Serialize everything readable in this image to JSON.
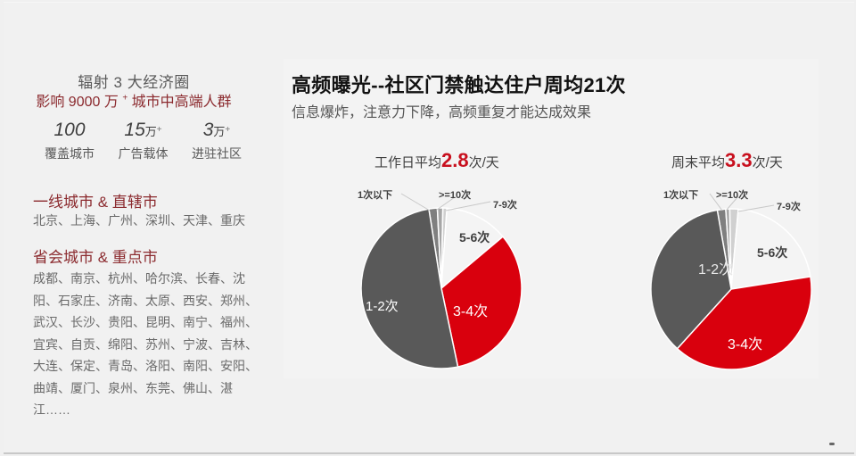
{
  "left": {
    "headline": "辐射 3 大经济圈",
    "subline_prefix": "影响 9000 万",
    "subline_sup": "+",
    "subline_suffix": "城市中高端人群",
    "stats": [
      {
        "value": "100",
        "unit": "",
        "sup": "",
        "label": "覆盖城市"
      },
      {
        "value": "15",
        "unit": "万",
        "sup": "+",
        "label": "广告载体"
      },
      {
        "value": "3",
        "unit": "万",
        "sup": "+",
        "label": "进驻社区"
      }
    ],
    "sections": [
      {
        "title": "一线城市 & 直辖市",
        "body": "北京、上海、广州、深圳、天津、重庆"
      },
      {
        "title": "省会城市 & 重点市",
        "body": "成都、南京、杭州、哈尔滨、长春、沈阳、石家庄、济南、太原、西安、郑州、武汉、长沙、贵阳、昆明、南宁、福州、宜宾、自贡、绵阳、苏州、宁波、吉林、大连、保定、青岛、洛阳、南阳、安阳、曲靖、厦门、泉州、东莞、佛山、湛江……"
      }
    ]
  },
  "right": {
    "title": "高频曝光--社区门禁触达住户周均21次",
    "subtitle": "信息爆炸，注意力下降，高频重复才能达成效果"
  },
  "colors": {
    "accent_red": "#d9000d",
    "brand_maroon": "#8b2a2e",
    "dark_grey": "#595959",
    "mid_grey": "#7f7f7f",
    "light_grey": "#a6a6a6",
    "lighter_grey": "#d0d0d0",
    "white_slice": "#f4f4f4"
  },
  "chart_data": [
    {
      "type": "pie",
      "title": "工作日平均2.8次/天",
      "title_prefix": "工作日平均",
      "title_value": "2.8",
      "title_suffix": "次/天",
      "categories": [
        "1次以下",
        ">=10次",
        "7-9次",
        "5-6次",
        "3-4次",
        "1-2次"
      ],
      "values": [
        1.7,
        1.1,
        0.8,
        12.8,
        32.8,
        50.8
      ],
      "colors": [
        "#7f7f7f",
        "#a6a6a6",
        "#d0d0d0",
        "#f4f4f4",
        "#d9000d",
        "#595959"
      ],
      "start_angle_deg": 351
    },
    {
      "type": "pie",
      "title": "周末平均3.3次/天",
      "title_prefix": "周末平均",
      "title_value": "3.3",
      "title_suffix": "次/天",
      "categories": [
        "1次以下",
        ">=10次",
        "7-9次",
        "5-6次",
        "3-4次",
        "1-2次"
      ],
      "values": [
        1.7,
        0.8,
        1.7,
        21.1,
        39.2,
        35.5
      ],
      "colors": [
        "#7f7f7f",
        "#a6a6a6",
        "#d0d0d0",
        "#f4f4f4",
        "#d9000d",
        "#595959"
      ],
      "start_angle_deg": 350
    }
  ]
}
